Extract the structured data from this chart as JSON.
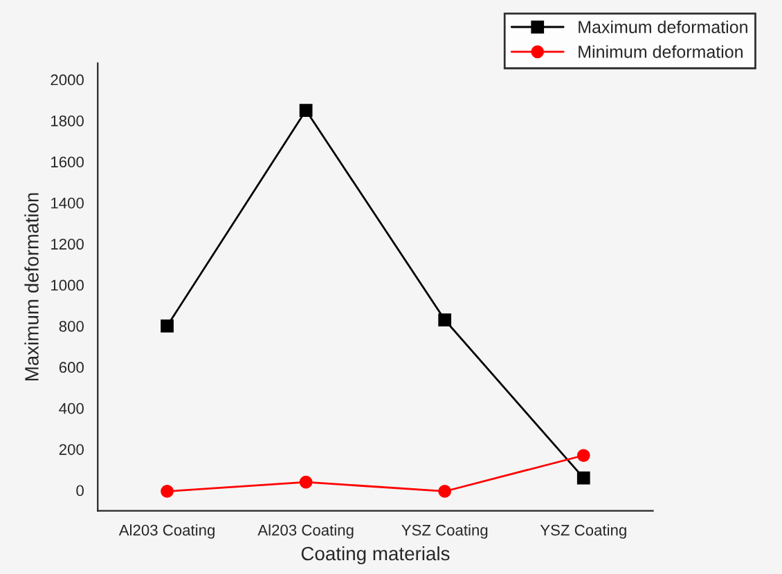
{
  "chart_data": {
    "type": "line",
    "xlabel": "Coating materials",
    "ylabel": "Maximum deformation",
    "categories": [
      "Al203 Coating",
      "Al203 Coating",
      "YSZ Coating",
      "YSZ Coating"
    ],
    "series": [
      {
        "name": "Maximum deformation",
        "color": "#000000",
        "values": [
          800,
          1850,
          830,
          60
        ],
        "marker": "square"
      },
      {
        "name": "Minimum deformation",
        "color": "#ff0000",
        "values": [
          -5,
          40,
          -5,
          170
        ],
        "marker": "circle"
      }
    ],
    "ylim": [
      -100,
      2080
    ],
    "yticks": [
      0,
      200,
      400,
      600,
      800,
      1000,
      1200,
      1400,
      1600,
      1800,
      2000
    ],
    "grid": false,
    "legend": "top right",
    "line_style": "solid"
  }
}
